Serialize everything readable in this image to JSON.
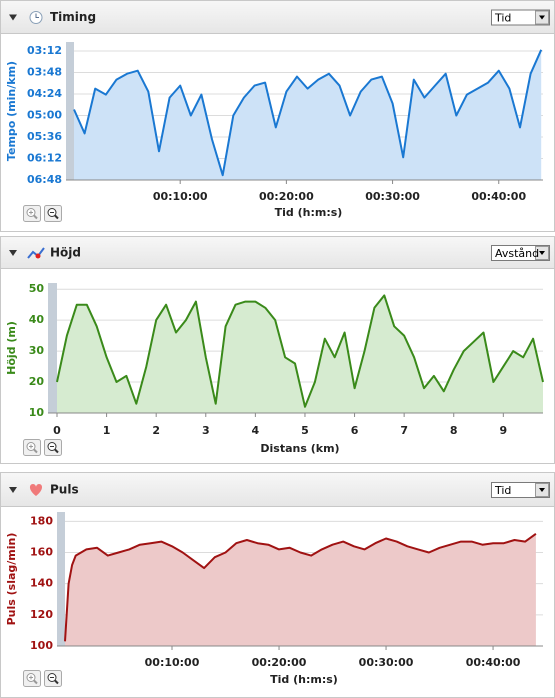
{
  "chart_data": [
    {
      "type": "area",
      "title": "Timing",
      "selector": "Tid",
      "xlabel": "Tid (h:m:s)",
      "ylabel": "Tempo (min/km)",
      "xlim": [
        0,
        2650
      ],
      "ylim": [
        408,
        177
      ],
      "xticks": [
        {
          "value": 600,
          "label": "00:10:00"
        },
        {
          "value": 1200,
          "label": "00:20:00"
        },
        {
          "value": 1800,
          "label": "00:30:00"
        },
        {
          "value": 2400,
          "label": "00:40:00"
        }
      ],
      "yticks": [
        {
          "value": 192,
          "label": "03:12"
        },
        {
          "value": 228,
          "label": "03:48"
        },
        {
          "value": 264,
          "label": "04:24"
        },
        {
          "value": 300,
          "label": "05:00"
        },
        {
          "value": 336,
          "label": "05:36"
        },
        {
          "value": 372,
          "label": "06:12"
        },
        {
          "value": 408,
          "label": "06:48"
        }
      ],
      "grid": true,
      "x": [
        0,
        60,
        120,
        180,
        240,
        300,
        360,
        420,
        480,
        540,
        600,
        660,
        720,
        780,
        840,
        900,
        960,
        1020,
        1080,
        1140,
        1200,
        1260,
        1320,
        1380,
        1440,
        1500,
        1560,
        1620,
        1680,
        1740,
        1800,
        1860,
        1920,
        1980,
        2040,
        2100,
        2160,
        2220,
        2280,
        2340,
        2400,
        2460,
        2520,
        2580,
        2640
      ],
      "series": [
        {
          "color": "#1a78d2",
          "fill": "#cde2f7",
          "values": [
            290,
            330,
            255,
            265,
            240,
            230,
            225,
            260,
            360,
            270,
            250,
            300,
            265,
            340,
            400,
            300,
            270,
            250,
            245,
            320,
            260,
            235,
            255,
            240,
            230,
            250,
            300,
            260,
            240,
            235,
            280,
            370,
            240,
            270,
            250,
            230,
            300,
            265,
            255,
            245,
            225,
            255,
            320,
            230,
            190
          ]
        }
      ]
    },
    {
      "type": "area",
      "title": "Höjd",
      "selector": "Avstånd",
      "xlabel": "Distans (km)",
      "ylabel": "Höjd (m)",
      "xlim": [
        0,
        9.8
      ],
      "ylim": [
        10,
        52
      ],
      "xticks": [
        0,
        1,
        2,
        3,
        4,
        5,
        6,
        7,
        8,
        9
      ],
      "yticks": [
        10,
        20,
        30,
        40,
        50
      ],
      "grid": true,
      "x": [
        0,
        0.2,
        0.4,
        0.6,
        0.8,
        1,
        1.2,
        1.4,
        1.6,
        1.8,
        2,
        2.2,
        2.4,
        2.6,
        2.8,
        3,
        3.2,
        3.4,
        3.6,
        3.8,
        4,
        4.2,
        4.4,
        4.6,
        4.8,
        5,
        5.2,
        5.4,
        5.6,
        5.8,
        6,
        6.2,
        6.4,
        6.6,
        6.8,
        7,
        7.2,
        7.4,
        7.6,
        7.8,
        8,
        8.2,
        8.4,
        8.6,
        8.8,
        9,
        9.2,
        9.4,
        9.6,
        9.8
      ],
      "series": [
        {
          "color": "#3a8a1a",
          "fill": "#d6ebd0",
          "values": [
            20,
            35,
            45,
            45,
            38,
            28,
            20,
            22,
            13,
            25,
            40,
            45,
            36,
            40,
            46,
            28,
            13,
            38,
            45,
            46,
            46,
            44,
            40,
            28,
            26,
            12,
            20,
            34,
            28,
            36,
            18,
            30,
            44,
            48,
            38,
            35,
            28,
            18,
            22,
            17,
            24,
            30,
            33,
            36,
            20,
            25,
            30,
            28,
            34,
            20
          ]
        }
      ]
    },
    {
      "type": "area",
      "title": "Puls",
      "selector": "Tid",
      "xlabel": "Tid (h:m:s)",
      "ylabel": "Puls (slag/min)",
      "xlim": [
        0,
        2680
      ],
      "ylim": [
        100,
        186
      ],
      "xticks": [
        {
          "value": 600,
          "label": "00:10:00"
        },
        {
          "value": 1200,
          "label": "00:20:00"
        },
        {
          "value": 1800,
          "label": "00:30:00"
        },
        {
          "value": 2400,
          "label": "00:40:00"
        }
      ],
      "yticks": [
        100,
        120,
        140,
        160,
        180
      ],
      "grid": true,
      "x": [
        0,
        20,
        40,
        60,
        120,
        180,
        240,
        300,
        360,
        420,
        480,
        540,
        600,
        660,
        720,
        780,
        840,
        900,
        960,
        1020,
        1080,
        1140,
        1200,
        1260,
        1320,
        1380,
        1440,
        1500,
        1560,
        1620,
        1680,
        1740,
        1800,
        1860,
        1920,
        1980,
        2040,
        2100,
        2160,
        2220,
        2280,
        2340,
        2400,
        2460,
        2520,
        2580,
        2640
      ],
      "series": [
        {
          "color": "#a01212",
          "fill": "#edc9c9",
          "values": [
            103,
            140,
            152,
            158,
            162,
            163,
            158,
            160,
            162,
            165,
            166,
            167,
            164,
            160,
            155,
            150,
            157,
            160,
            166,
            168,
            166,
            165,
            162,
            163,
            160,
            158,
            162,
            165,
            167,
            164,
            162,
            166,
            169,
            167,
            164,
            162,
            160,
            163,
            165,
            167,
            167,
            165,
            166,
            166,
            168,
            167,
            172
          ]
        }
      ]
    }
  ]
}
